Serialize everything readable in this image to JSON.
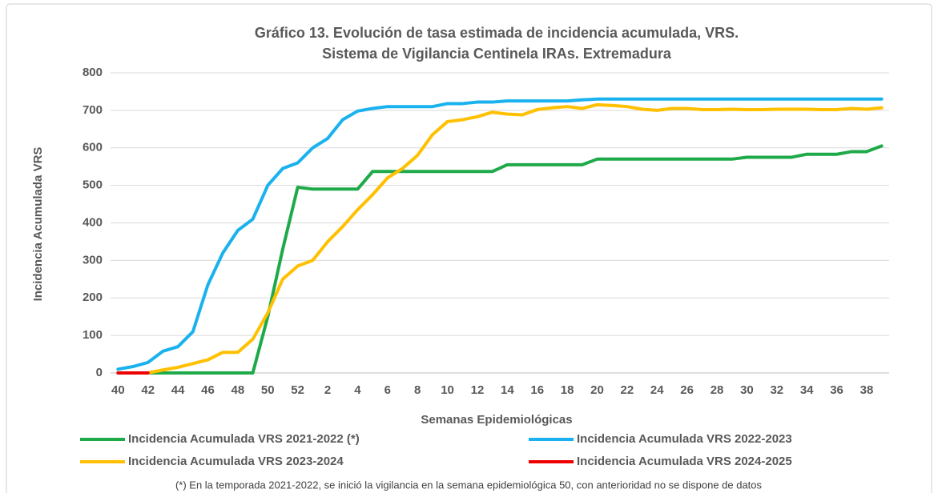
{
  "chart_data": {
    "type": "line",
    "title": "Gráfico 13. Evolución de tasa estimada de incidencia acumulada, VRS.",
    "subtitle": "Sistema de Vigilancia Centinela IRAs. Extremadura",
    "x_label": "Semanas Epidemiológicas",
    "y_label": "Incidencia Acumulada VRS",
    "note": "(*) En la temporada 2021-2022, se inició la vigilancia en la semana epidemiológica 50, con anterioridad no se dispone de datos",
    "categories": [
      "40",
      null,
      "42",
      null,
      "44",
      null,
      "46",
      null,
      "48",
      null,
      "50",
      null,
      "52",
      null,
      "2",
      null,
      "4",
      null,
      "6",
      null,
      "8",
      null,
      "10",
      null,
      "12",
      null,
      "14",
      null,
      "16",
      null,
      "18",
      null,
      "20",
      null,
      "22",
      null,
      "24",
      null,
      "26",
      null,
      "28",
      null,
      "30",
      null,
      "32",
      null,
      "34",
      null,
      "36",
      null,
      "38",
      null
    ],
    "ylim": [
      0,
      800
    ],
    "yticks": [
      0,
      100,
      200,
      300,
      400,
      500,
      600,
      700,
      800
    ],
    "grid": true,
    "series": [
      {
        "name": "Incidencia Acumulada VRS 2021-2022 (*)",
        "color": "#1faa4a",
        "values": [
          0,
          0,
          0,
          0,
          0,
          0,
          0,
          0,
          0,
          0,
          150,
          330,
          495,
          490,
          490,
          490,
          490,
          537,
          537,
          537,
          537,
          537,
          537,
          537,
          537,
          537,
          555,
          555,
          555,
          555,
          555,
          555,
          570,
          570,
          570,
          570,
          570,
          570,
          570,
          570,
          570,
          570,
          575,
          575,
          575,
          575,
          583,
          583,
          583,
          590,
          590,
          605
        ]
      },
      {
        "name": "Incidencia Acumulada VRS 2022-2023",
        "color": "#1ab2ee",
        "values": [
          10,
          17,
          28,
          58,
          70,
          110,
          235,
          320,
          380,
          410,
          500,
          545,
          560,
          600,
          625,
          675,
          698,
          705,
          710,
          710,
          710,
          710,
          718,
          718,
          722,
          722,
          725,
          725,
          725,
          725,
          725,
          728,
          730,
          730,
          730,
          730,
          730,
          730,
          730,
          730,
          730,
          730,
          730,
          730,
          730,
          730,
          730,
          730,
          730,
          730,
          730,
          730
        ]
      },
      {
        "name": "Incidencia Acumulada VRS 2023-2024",
        "color": "#ffc000",
        "values": [
          null,
          null,
          0,
          8,
          15,
          25,
          35,
          55,
          55,
          90,
          160,
          250,
          285,
          300,
          350,
          390,
          435,
          475,
          520,
          545,
          580,
          635,
          670,
          675,
          683,
          695,
          690,
          688,
          702,
          707,
          710,
          705,
          715,
          713,
          710,
          703,
          700,
          705,
          705,
          702,
          702,
          703,
          702,
          702,
          703,
          703,
          703,
          702,
          702,
          705,
          703,
          707
        ]
      },
      {
        "name": "Incidencia Acumulada VRS 2024-2025",
        "color": "#ee0000",
        "values": [
          0,
          0,
          0,
          null,
          null,
          null,
          null,
          null,
          null,
          null,
          null,
          null,
          null,
          null,
          null,
          null,
          null,
          null,
          null,
          null,
          null,
          null,
          null,
          null,
          null,
          null,
          null,
          null,
          null,
          null,
          null,
          null,
          null,
          null,
          null,
          null,
          null,
          null,
          null,
          null,
          null,
          null,
          null,
          null,
          null,
          null,
          null,
          null,
          null,
          null,
          null,
          null
        ]
      }
    ]
  }
}
